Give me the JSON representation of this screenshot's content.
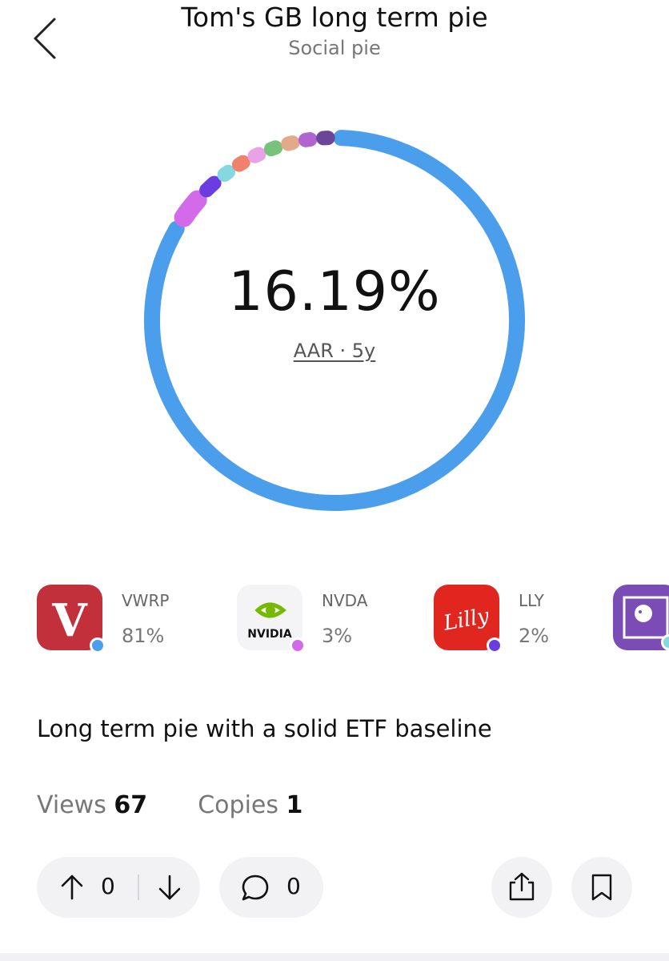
{
  "header": {
    "title": "Tom's GB long term pie",
    "subtitle": "Social pie"
  },
  "performance": {
    "aar_value": "16.19%",
    "aar_label": "AAR · 5y"
  },
  "chart_data": {
    "type": "pie",
    "slices": [
      {
        "value": 81,
        "color": "#4a9eec"
      },
      {
        "value": 3,
        "color": "#d26ae9"
      },
      {
        "value": 2,
        "color": "#6b3de0"
      },
      {
        "value": 1.5,
        "color": "#86d8e0"
      },
      {
        "value": 1.5,
        "color": "#f0826b"
      },
      {
        "value": 1.5,
        "color": "#e9a2e6"
      },
      {
        "value": 1.5,
        "color": "#79c27a"
      },
      {
        "value": 1.5,
        "color": "#e2a98b"
      },
      {
        "value": 1.5,
        "color": "#b164cf"
      },
      {
        "value": 1.5,
        "color": "#6b4597"
      }
    ]
  },
  "holdings": [
    {
      "ticker": "VWRP",
      "weight": "81%",
      "dot_color": "#4a9eec",
      "icon": "vanguard-logo-icon",
      "logo_text": "V",
      "logo_bg": "#c2303b"
    },
    {
      "ticker": "NVDA",
      "weight": "3%",
      "dot_color": "#d26ae9",
      "icon": "nvidia-logo-icon",
      "logo_text": "NVIDIA",
      "logo_bg": "#f4f4f6"
    },
    {
      "ticker": "LLY",
      "weight": "2%",
      "dot_color": "#6b3de0",
      "icon": "lilly-logo-icon",
      "logo_text": "Lilly",
      "logo_bg": "#e0261e"
    },
    {
      "ticker": "",
      "weight": "",
      "dot_color": "#86d8e0",
      "icon": "datadog-logo-icon",
      "logo_text": "",
      "logo_bg": "#7b4bb6"
    }
  ],
  "description": "Long term pie with a solid ETF baseline",
  "stats": {
    "views_label": "Views",
    "views_value": "67",
    "copies_label": "Copies",
    "copies_value": "1"
  },
  "actions": {
    "upvotes": "0",
    "comments": "0"
  },
  "icons": {
    "back": "chevron-left-icon",
    "upvote": "arrow-up-icon",
    "downvote": "arrow-down-icon",
    "comment": "comment-bubble-icon",
    "share": "share-icon",
    "save": "bookmark-icon"
  }
}
